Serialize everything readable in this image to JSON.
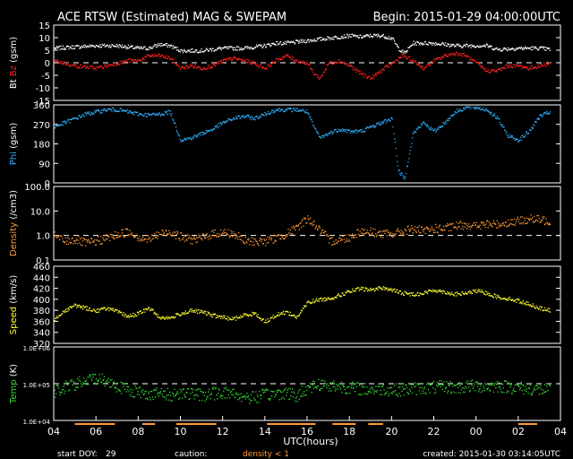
{
  "header": {
    "title": "ACE RTSW (Estimated) MAG & SWEPAM",
    "begin": "Begin: 2015-01-29 04:00:00UTC"
  },
  "footer": {
    "start_doy_label": "start DOY:",
    "start_doy_value": "29",
    "caution_label": "caution:",
    "density_caution": "density < 1",
    "created": "created: 2015-01-30 03:14:05UTC"
  },
  "colors": {
    "bt": "#ffffff",
    "bz": "#ff2020",
    "phi": "#30b0ff",
    "density": "#ff9a30",
    "speed": "#ffff30",
    "temp": "#30e030",
    "caution": "#ff9a30"
  },
  "chart_data": {
    "type": "scatter",
    "xlabel": "UTC(hours)",
    "x_ticks": [
      "04",
      "06",
      "08",
      "10",
      "12",
      "14",
      "16",
      "18",
      "20",
      "22",
      "00",
      "02",
      "04"
    ],
    "caution_bars_hours": [
      [
        5.0,
        6.9
      ],
      [
        8.2,
        8.8
      ],
      [
        9.8,
        11.7
      ],
      [
        14.1,
        16.4
      ],
      [
        17.2,
        18.3
      ],
      [
        18.9,
        19.6
      ],
      [
        26.0,
        26.9
      ]
    ],
    "panels": [
      {
        "key": "mag",
        "ylabel_parts": [
          {
            "text": "Bt",
            "color": "#ffffff"
          },
          {
            "text": " Bz",
            "color": "#ff2020"
          },
          {
            "text": " (gsm)",
            "color": "#ffffff"
          }
        ],
        "ylim": [
          -15,
          15
        ],
        "y_ticks": [
          -15,
          -10,
          -5,
          0,
          5,
          10,
          15
        ],
        "y_tick_labels": [
          "-15",
          "-10",
          "-5",
          "0",
          "5",
          "10",
          "15"
        ],
        "reference_line": 0,
        "series": [
          {
            "name": "Bt",
            "color": "#ffffff",
            "x": [
              4,
              5,
              6,
              7,
              8,
              8.5,
              9,
              9.5,
              10,
              11,
              12,
              13,
              14,
              14.5,
              15,
              15.5,
              16,
              16.5,
              17,
              17.5,
              18,
              18.5,
              19,
              19.5,
              20,
              20.3,
              20.6,
              21,
              21.5,
              22,
              23,
              24,
              24.5,
              25,
              26,
              27,
              27.5
            ],
            "y": [
              6,
              6.5,
              7,
              7,
              6,
              6,
              7.5,
              7,
              5,
              5,
              6,
              6,
              7,
              8,
              8,
              8.5,
              9,
              9.5,
              10,
              10.5,
              11,
              10.5,
              11,
              11,
              10,
              6,
              4,
              8,
              8,
              8,
              7,
              7,
              7,
              5.5,
              6,
              6,
              5.5
            ]
          },
          {
            "name": "Bz",
            "color": "#ff2020",
            "x": [
              4,
              4.5,
              5,
              5.5,
              6,
              6.5,
              7,
              7.5,
              8,
              8.5,
              9,
              9.5,
              10,
              10.5,
              11,
              11.5,
              12,
              12.5,
              13,
              13.5,
              14,
              14.5,
              15,
              15.5,
              16,
              16.3,
              16.6,
              17,
              17.5,
              18,
              18.5,
              19,
              19.5,
              20,
              20.5,
              21,
              21.5,
              22,
              22.5,
              23,
              23.5,
              24,
              24.5,
              25,
              25.5,
              26,
              26.5,
              27,
              27.5
            ],
            "y": [
              1,
              0,
              -1,
              -1.5,
              -2,
              -1,
              0,
              1,
              1,
              3,
              3,
              2,
              -2,
              -1,
              -2,
              -1,
              1,
              2,
              1,
              0,
              -2,
              1,
              3,
              1,
              0,
              -4,
              -6,
              0,
              1,
              -1,
              -4,
              -6,
              -3,
              0,
              3,
              1,
              -2,
              1,
              3,
              4,
              3,
              0,
              -3,
              -3,
              -1,
              -1,
              -2,
              -1,
              0
            ]
          }
        ]
      },
      {
        "key": "phi",
        "ylabel_parts": [
          {
            "text": "Phi",
            "color": "#30b0ff"
          },
          {
            "text": " (gsm)",
            "color": "#ffffff"
          }
        ],
        "ylim": [
          0,
          360
        ],
        "y_ticks": [
          0,
          90,
          180,
          270,
          360
        ],
        "y_tick_labels": [
          "0",
          "90",
          "180",
          "270",
          "360"
        ],
        "series": [
          {
            "name": "Phi",
            "color": "#30b0ff",
            "x": [
              4,
              4.5,
              5,
              5.5,
              6,
              6.5,
              7,
              7.5,
              8,
              8.5,
              9,
              9.5,
              10,
              10.5,
              11,
              11.5,
              12,
              12.5,
              13,
              13.5,
              14,
              14.5,
              15,
              15.5,
              16,
              16.3,
              16.6,
              17,
              17.5,
              18,
              18.5,
              19,
              19.5,
              20,
              20.3,
              20.6,
              21,
              21.5,
              22,
              22.5,
              23,
              23.5,
              24,
              24.5,
              25,
              25.5,
              26,
              26.5,
              27,
              27.5
            ],
            "y": [
              260,
              280,
              300,
              320,
              330,
              340,
              340,
              330,
              320,
              315,
              320,
              330,
              200,
              210,
              230,
              250,
              280,
              300,
              310,
              300,
              320,
              340,
              340,
              340,
              330,
              260,
              210,
              230,
              250,
              240,
              240,
              260,
              280,
              300,
              60,
              20,
              230,
              280,
              240,
              280,
              330,
              350,
              350,
              340,
              300,
              220,
              200,
              240,
              310,
              330
            ]
          }
        ]
      },
      {
        "key": "density",
        "ylabel_parts": [
          {
            "text": "Density",
            "color": "#ff9a30"
          },
          {
            "text": " (/cm3)",
            "color": "#ffffff"
          }
        ],
        "ylim": [
          0.1,
          100
        ],
        "log": true,
        "y_ticks": [
          0.1,
          1,
          10,
          100
        ],
        "y_tick_labels": [
          "0.1",
          "1.0",
          "10.0",
          "100.0"
        ],
        "reference_line": 1,
        "series": [
          {
            "name": "Density",
            "color": "#ff9a30",
            "x": [
              4,
              4.5,
              5,
              5.5,
              6,
              6.5,
              7,
              7.5,
              8,
              8.5,
              9,
              9.5,
              10,
              10.5,
              11,
              11.5,
              12,
              12.5,
              13,
              13.5,
              14,
              14.5,
              15,
              15.5,
              16,
              16.5,
              17,
              17.5,
              18,
              18.5,
              19,
              19.5,
              20,
              20.5,
              21,
              21.5,
              22,
              22.5,
              23,
              23.5,
              24,
              24.5,
              25,
              25.5,
              26,
              26.5,
              27,
              27.5
            ],
            "y": [
              1,
              0.6,
              0.7,
              0.5,
              0.6,
              0.8,
              1.1,
              1.5,
              0.9,
              0.7,
              1.2,
              1.5,
              0.9,
              0.7,
              0.8,
              1.2,
              1.4,
              1.2,
              0.6,
              0.6,
              0.6,
              0.8,
              1.2,
              2,
              5,
              2,
              0.6,
              0.7,
              0.9,
              1.5,
              1.5,
              1.2,
              1.2,
              1.5,
              2,
              1.5,
              2,
              2,
              2.5,
              3,
              2.5,
              3,
              3,
              3.5,
              4,
              5,
              4.5,
              4
            ]
          }
        ]
      },
      {
        "key": "speed",
        "ylabel_parts": [
          {
            "text": "Speed",
            "color": "#ffff30"
          },
          {
            "text": " (km/s)",
            "color": "#ffffff"
          }
        ],
        "ylim": [
          320,
          460
        ],
        "y_ticks": [
          320,
          340,
          360,
          380,
          400,
          420,
          440,
          460
        ],
        "y_tick_labels": [
          "320",
          "340",
          "360",
          "380",
          "400",
          "420",
          "440",
          "460"
        ],
        "series": [
          {
            "name": "Speed",
            "color": "#ffff30",
            "x": [
              4,
              4.5,
              5,
              5.5,
              6,
              6.5,
              7,
              7.5,
              8,
              8.5,
              9,
              9.5,
              10,
              10.5,
              11,
              11.5,
              12,
              12.5,
              13,
              13.5,
              14,
              14.5,
              15,
              15.5,
              16,
              16.5,
              17,
              17.5,
              18,
              18.5,
              19,
              19.5,
              20,
              20.5,
              21,
              21.5,
              22,
              22.5,
              23,
              23.5,
              24,
              24.5,
              25,
              25.5,
              26,
              26.5,
              27,
              27.5
            ],
            "y": [
              365,
              380,
              390,
              385,
              380,
              385,
              378,
              370,
              375,
              385,
              368,
              367,
              375,
              380,
              378,
              372,
              368,
              365,
              372,
              375,
              360,
              372,
              378,
              368,
              395,
              400,
              402,
              408,
              415,
              420,
              418,
              422,
              418,
              412,
              410,
              412,
              418,
              414,
              410,
              412,
              416,
              412,
              405,
              402,
              398,
              392,
              385,
              380
            ]
          }
        ]
      },
      {
        "key": "temp",
        "ylabel_parts": [
          {
            "text": "Temp",
            "color": "#30e030"
          },
          {
            "text": " (K)",
            "color": "#ffffff"
          }
        ],
        "ylim": [
          10000,
          1000000
        ],
        "log": true,
        "y_ticks": [
          10000,
          100000,
          1000000
        ],
        "y_tick_labels": [
          "1.0E+04",
          "1.0E+05",
          "1.0E+06"
        ],
        "reference_line": 100000,
        "series": [
          {
            "name": "Temp",
            "color": "#30e030",
            "x": [
              4,
              4.5,
              5,
              5.5,
              6,
              6.5,
              7,
              7.5,
              8,
              8.5,
              9,
              9.5,
              10,
              10.5,
              11,
              11.5,
              12,
              12.5,
              13,
              13.5,
              14,
              14.5,
              15,
              15.5,
              16,
              16.5,
              17,
              17.5,
              18,
              18.5,
              19,
              19.5,
              20,
              20.5,
              21,
              21.5,
              22,
              22.5,
              23,
              23.5,
              24,
              24.5,
              25,
              25.5,
              26,
              26.5,
              27,
              27.5
            ],
            "y": [
              60000,
              80000,
              100000,
              120000,
              150000,
              120000,
              90000,
              70000,
              60000,
              55000,
              55000,
              50000,
              60000,
              55000,
              50000,
              55000,
              60000,
              55000,
              45000,
              45000,
              50000,
              55000,
              60000,
              45000,
              80000,
              100000,
              90000,
              90000,
              80000,
              75000,
              70000,
              75000,
              70000,
              70000,
              75000,
              80000,
              80000,
              85000,
              80000,
              85000,
              90000,
              85000,
              90000,
              85000,
              80000,
              75000,
              70000,
              70000
            ]
          }
        ]
      }
    ]
  }
}
